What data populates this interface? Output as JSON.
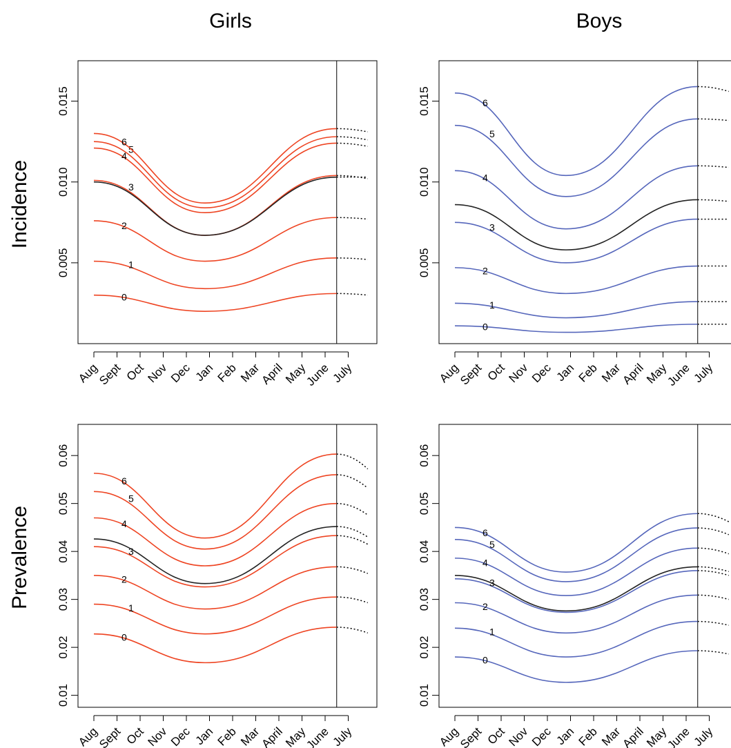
{
  "column_titles": [
    "Girls",
    "Boys"
  ],
  "row_titles": [
    "Incidence",
    "Prevalence"
  ],
  "chart_data": [
    {
      "type": "line",
      "panel": "Girls / Incidence",
      "x_tick_labels": [
        "Aug",
        "Sept",
        "Oct",
        "Nov",
        "Dec",
        "Jan",
        "Feb",
        "Mar",
        "April",
        "May",
        "June",
        "July"
      ],
      "ylim": [
        0.0,
        0.0175
      ],
      "y_ticks": [
        0.005,
        0.01,
        0.015
      ],
      "y_tick_labels": [
        "0.005",
        "0.010",
        "0.015"
      ],
      "solid_until": "June",
      "extrapolated_after": "June",
      "series": [
        {
          "name": "0",
          "color": "#ee4422",
          "aug": 0.003,
          "min": 0.002,
          "june": 0.0031,
          "july": 0.003
        },
        {
          "name": "1",
          "color": "#ee4422",
          "aug": 0.0051,
          "min": 0.0034,
          "june": 0.0053,
          "july": 0.0052
        },
        {
          "name": "2",
          "color": "#ee4422",
          "aug": 0.0076,
          "min": 0.0051,
          "june": 0.0078,
          "july": 0.0077
        },
        {
          "name": "3",
          "color": "#ee4422",
          "aug": 0.0101,
          "min": 0.0067,
          "june": 0.0104,
          "july": 0.0102
        },
        {
          "name": "4",
          "color": "#ee4422",
          "aug": 0.0121,
          "min": 0.0081,
          "june": 0.0124,
          "july": 0.0122
        },
        {
          "name": "5",
          "color": "#ee4422",
          "aug": 0.0125,
          "min": 0.0084,
          "june": 0.0128,
          "july": 0.0126
        },
        {
          "name": "6",
          "color": "#ee4422",
          "aug": 0.013,
          "min": 0.0087,
          "june": 0.0133,
          "july": 0.0131
        },
        {
          "name": "",
          "color": "#222222",
          "aug": 0.01,
          "min": 0.0067,
          "june": 0.0103,
          "july": 0.0103
        }
      ]
    },
    {
      "type": "line",
      "panel": "Boys / Incidence",
      "x_tick_labels": [
        "Aug",
        "Sept",
        "Oct",
        "Nov",
        "Dec",
        "Jan",
        "Feb",
        "Mar",
        "April",
        "May",
        "June",
        "July"
      ],
      "ylim": [
        0.0,
        0.0175
      ],
      "y_ticks": [
        0.005,
        0.01,
        0.015
      ],
      "y_tick_labels": [
        "0.005",
        "0.010",
        "0.015"
      ],
      "solid_until": "June",
      "extrapolated_after": "June",
      "series": [
        {
          "name": "0",
          "color": "#5566bb",
          "aug": 0.0011,
          "min": 0.0007,
          "june": 0.0012,
          "july": 0.0012
        },
        {
          "name": "1",
          "color": "#5566bb",
          "aug": 0.0025,
          "min": 0.0016,
          "june": 0.0026,
          "july": 0.0026
        },
        {
          "name": "2",
          "color": "#5566bb",
          "aug": 0.0047,
          "min": 0.0031,
          "june": 0.0048,
          "july": 0.0048
        },
        {
          "name": "3",
          "color": "#5566bb",
          "aug": 0.0075,
          "min": 0.005,
          "june": 0.0077,
          "july": 0.0077
        },
        {
          "name": "4",
          "color": "#5566bb",
          "aug": 0.0107,
          "min": 0.0071,
          "june": 0.011,
          "july": 0.0109
        },
        {
          "name": "5",
          "color": "#5566bb",
          "aug": 0.0135,
          "min": 0.0091,
          "june": 0.0139,
          "july": 0.0138
        },
        {
          "name": "6",
          "color": "#5566bb",
          "aug": 0.0155,
          "min": 0.0104,
          "june": 0.0159,
          "july": 0.0156
        },
        {
          "name": "",
          "color": "#222222",
          "aug": 0.0086,
          "min": 0.0058,
          "june": 0.0089,
          "july": 0.0088
        }
      ]
    },
    {
      "type": "line",
      "panel": "Girls / Prevalence",
      "x_tick_labels": [
        "Aug",
        "Sept",
        "Oct",
        "Nov",
        "Dec",
        "Jan",
        "Feb",
        "Mar",
        "April",
        "May",
        "June",
        "July"
      ],
      "ylim": [
        0.0075,
        0.0665
      ],
      "y_ticks": [
        0.01,
        0.02,
        0.03,
        0.04,
        0.05,
        0.06
      ],
      "y_tick_labels": [
        "0.01",
        "0.02",
        "0.03",
        "0.04",
        "0.05",
        "0.06"
      ],
      "solid_until": "June",
      "extrapolated_after": "June",
      "series": [
        {
          "name": "0",
          "color": "#ee4422",
          "aug": 0.0228,
          "min": 0.0168,
          "june": 0.0242,
          "july": 0.023
        },
        {
          "name": "1",
          "color": "#ee4422",
          "aug": 0.029,
          "min": 0.0228,
          "june": 0.0305,
          "july": 0.0293
        },
        {
          "name": "2",
          "color": "#ee4422",
          "aug": 0.035,
          "min": 0.028,
          "june": 0.0368,
          "july": 0.0354
        },
        {
          "name": "3",
          "color": "#ee4422",
          "aug": 0.041,
          "min": 0.0326,
          "june": 0.0433,
          "july": 0.0415
        },
        {
          "name": "4",
          "color": "#ee4422",
          "aug": 0.047,
          "min": 0.037,
          "june": 0.05,
          "july": 0.0476
        },
        {
          "name": "5",
          "color": "#ee4422",
          "aug": 0.0525,
          "min": 0.0405,
          "june": 0.056,
          "july": 0.0532
        },
        {
          "name": "6",
          "color": "#ee4422",
          "aug": 0.0563,
          "min": 0.0428,
          "june": 0.0603,
          "july": 0.0572
        },
        {
          "name": "",
          "color": "#222222",
          "aug": 0.0426,
          "min": 0.0333,
          "june": 0.0452,
          "july": 0.043
        }
      ]
    },
    {
      "type": "line",
      "panel": "Boys / Prevalence",
      "x_tick_labels": [
        "Aug",
        "Sept",
        "Oct",
        "Nov",
        "Dec",
        "Jan",
        "Feb",
        "Mar",
        "April",
        "May",
        "June",
        "July"
      ],
      "ylim": [
        0.0075,
        0.0665
      ],
      "y_ticks": [
        0.01,
        0.02,
        0.03,
        0.04,
        0.05,
        0.06
      ],
      "y_tick_labels": [
        "0.01",
        "0.02",
        "0.03",
        "0.04",
        "0.05",
        "0.06"
      ],
      "solid_until": "June",
      "extrapolated_after": "June",
      "series": [
        {
          "name": "0",
          "color": "#5566bb",
          "aug": 0.018,
          "min": 0.0127,
          "june": 0.0193,
          "july": 0.0186
        },
        {
          "name": "1",
          "color": "#5566bb",
          "aug": 0.024,
          "min": 0.018,
          "june": 0.0254,
          "july": 0.0246
        },
        {
          "name": "2",
          "color": "#5566bb",
          "aug": 0.0293,
          "min": 0.023,
          "june": 0.0309,
          "july": 0.03
        },
        {
          "name": "3",
          "color": "#5566bb",
          "aug": 0.0343,
          "min": 0.0273,
          "june": 0.036,
          "july": 0.035
        },
        {
          "name": "4",
          "color": "#5566bb",
          "aug": 0.0386,
          "min": 0.0308,
          "june": 0.0407,
          "july": 0.0395
        },
        {
          "name": "5",
          "color": "#5566bb",
          "aug": 0.0425,
          "min": 0.0337,
          "june": 0.0449,
          "july": 0.0435
        },
        {
          "name": "6",
          "color": "#5566bb",
          "aug": 0.045,
          "min": 0.0357,
          "june": 0.0479,
          "july": 0.0462
        },
        {
          "name": "",
          "color": "#222222",
          "aug": 0.035,
          "min": 0.0276,
          "june": 0.0368,
          "july": 0.0358
        }
      ]
    }
  ]
}
